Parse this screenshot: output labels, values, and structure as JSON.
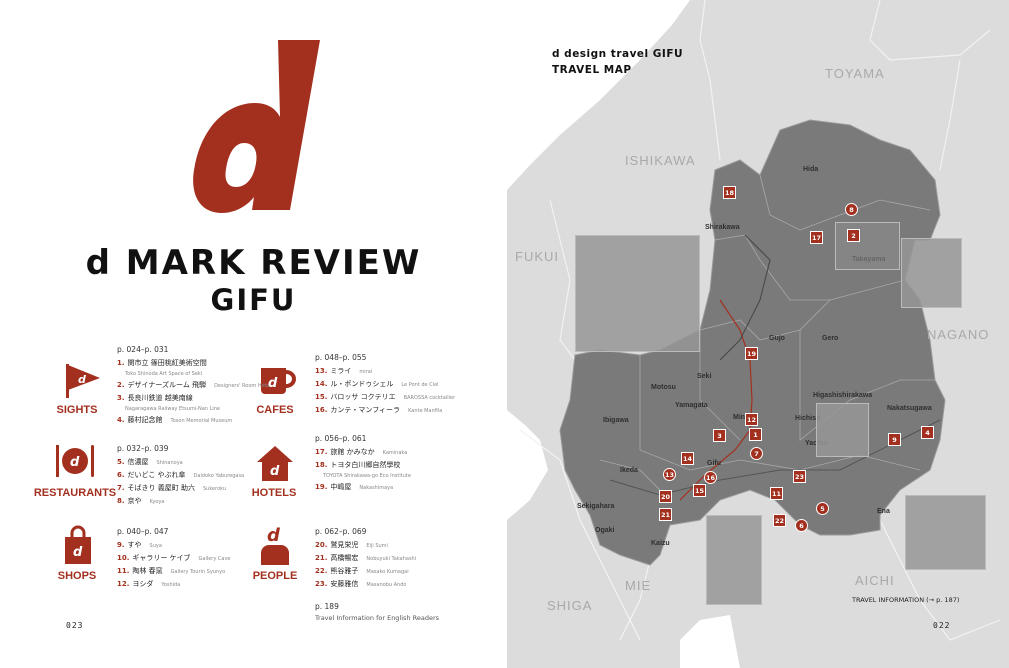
{
  "left_page": {
    "logo_letter": "d",
    "title_line1": "d MARK REVIEW",
    "title_line2": "GIFU",
    "page_number": "023",
    "categories": [
      {
        "key": "sights",
        "label": "SIGHTS",
        "icon": "flag-icon",
        "pages": "p. 024–p. 031",
        "items": [
          {
            "num": "1.",
            "ja": "関市立 篠田桃紅美術空間",
            "en": "Toko Shinoda Art Space of Seki",
            "wrap": true
          },
          {
            "num": "2.",
            "ja": "デザイナーズルーム 飛騨",
            "en": "Designers' Room Hida"
          },
          {
            "num": "3.",
            "ja": "長良川鉄道 越美南線",
            "en": "Nagaragawa Railway Etsumi-Nan Line",
            "wrap": true
          },
          {
            "num": "4.",
            "ja": "藤村記念館",
            "en": "Toson Memorial Museum"
          }
        ]
      },
      {
        "key": "restaurants",
        "label": "RESTAURANTS",
        "icon": "plate-cutlery-icon",
        "pages": "p. 032–p. 039",
        "items": [
          {
            "num": "5.",
            "ja": "信濃屋",
            "en": "Shinanoya"
          },
          {
            "num": "6.",
            "ja": "だいどこ やぶれ傘",
            "en": "Daidoko Yaburegasa"
          },
          {
            "num": "7.",
            "ja": "そばきり 義屋町 助六",
            "en": "Sukeroku"
          },
          {
            "num": "8.",
            "ja": "京や",
            "en": "Kyoya"
          }
        ]
      },
      {
        "key": "shops",
        "label": "SHOPS",
        "icon": "shopping-bag-icon",
        "pages": "p. 040–p. 047",
        "items": [
          {
            "num": "9.",
            "ja": "すや",
            "en": "Suya"
          },
          {
            "num": "10.",
            "ja": "ギャラリー ケイブ",
            "en": "Gallery Cave"
          },
          {
            "num": "11.",
            "ja": "陶林 春窯",
            "en": "Gallery Tourin Syunyo"
          },
          {
            "num": "12.",
            "ja": "ヨシダ",
            "en": "Yoshida"
          }
        ]
      },
      {
        "key": "cafes",
        "label": "CAFES",
        "icon": "coffee-cup-icon",
        "pages": "p. 048–p. 055",
        "items": [
          {
            "num": "13.",
            "ja": "ミライ",
            "en": "mirai"
          },
          {
            "num": "14.",
            "ja": "ル・ポンドゥシェル",
            "en": "Le Pont de Ciel"
          },
          {
            "num": "15.",
            "ja": "バロッサ コクテリエ",
            "en": "BAROSSA cocktailier"
          },
          {
            "num": "16.",
            "ja": "カンテ・マンフィーラ",
            "en": "Kante Manfila"
          }
        ]
      },
      {
        "key": "hotels",
        "label": "HOTELS",
        "icon": "house-icon",
        "pages": "p. 056–p. 061",
        "items": [
          {
            "num": "17.",
            "ja": "旅館 かみなか",
            "en": "Kaminaka"
          },
          {
            "num": "18.",
            "ja": "トヨタ白川郷自然學校",
            "en": "TOYOTA Shirakawa-go Eco Institute",
            "wrap": true
          },
          {
            "num": "19.",
            "ja": "中嶋屋",
            "en": "Nakashimaya"
          }
        ]
      },
      {
        "key": "people",
        "label": "PEOPLE",
        "icon": "person-icon",
        "pages": "p. 062–p. 069",
        "items": [
          {
            "num": "20.",
            "ja": "鷲見栄児",
            "en": "Eiji Sumi"
          },
          {
            "num": "21.",
            "ja": "高橋暢宏",
            "en": "Nobuyuki Takahashi"
          },
          {
            "num": "22.",
            "ja": "熊谷雅子",
            "en": "Masako Kumagai"
          },
          {
            "num": "23.",
            "ja": "安藤雅信",
            "en": "Masanobu Ando"
          }
        ]
      }
    ],
    "extra_page": "p. 189",
    "extra_label": "Travel Information for English Readers"
  },
  "right_page": {
    "map_title_line1": "d design travel GIFU",
    "map_title_line2": "TRAVEL MAP",
    "page_number": "022",
    "travel_info": "TRAVEL INFORMATION (→ p. 187)",
    "prefectures": [
      "TOYAMA",
      "ISHIKAWA",
      "FUKUI",
      "NAGANO",
      "AICHI",
      "MIE",
      "SHIGA"
    ],
    "regions": [
      "Hida",
      "Shirakawa",
      "Takayama",
      "Gujo",
      "Gero",
      "Seki",
      "Motosu",
      "Yamagata",
      "Ibigawa",
      "Mino",
      "Hichiso",
      "Yaotsu",
      "Higashishirakawa",
      "Nakatsugawa",
      "Gifu",
      "Ikeda",
      "Sekigahara",
      "Ogaki",
      "Kaizu",
      "Ena"
    ],
    "markers": [
      "18",
      "17",
      "8",
      "2",
      "19",
      "12",
      "1",
      "3",
      "7",
      "14",
      "13",
      "16",
      "15",
      "20",
      "21",
      "11",
      "5",
      "6",
      "22",
      "23",
      "9",
      "4"
    ],
    "colors": {
      "accent": "#a3301f",
      "gifu": "#7a7a7a",
      "surrounding": "#dcdcdc",
      "sea": "#ffffff"
    }
  }
}
